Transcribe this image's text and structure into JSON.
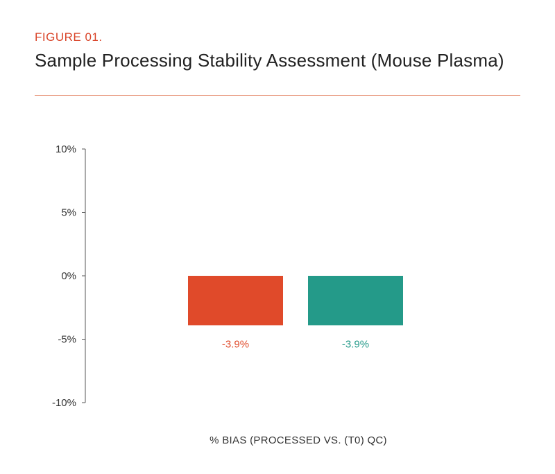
{
  "header": {
    "figure_label": "FIGURE 01.",
    "title": "Sample Processing Stability Assessment (Mouse Plasma)"
  },
  "colors": {
    "accent": "#d9452a",
    "rule": "#e38464",
    "bar_1": "#e04a2a",
    "bar_2": "#249a89",
    "axis": "#555555"
  },
  "chart_data": {
    "type": "bar",
    "categories": [
      "",
      ""
    ],
    "values": [
      -3.9,
      -3.9
    ],
    "data_labels": [
      "-3.9%",
      "-3.9%"
    ],
    "bar_colors": [
      "#e04a2a",
      "#249a89"
    ],
    "title": "",
    "xlabel": "% BIAS (PROCESSED VS. (T0) QC)",
    "ylabel": "",
    "ylim": [
      -10,
      10
    ],
    "yticks": [
      10,
      5,
      0,
      -5,
      -10
    ],
    "ytick_labels": [
      "10%",
      "5%",
      "0%",
      "-5%",
      "-10%"
    ],
    "grid": false,
    "legend": "none"
  }
}
